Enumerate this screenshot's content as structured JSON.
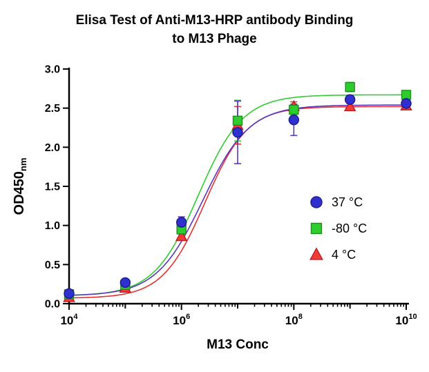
{
  "title": {
    "line1": "Elisa Test of Anti-M13-HRP antibody Binding",
    "line2": "to M13 Phage"
  },
  "chart_data": {
    "type": "scatter",
    "title": "Elisa Test of Anti-M13-HRP antibody Binding to M13 Phage",
    "xlabel": "M13 Conc",
    "ylabel": "OD450",
    "ylabel_subscript": "nm",
    "x_scale": "log10",
    "x_log_min": 4,
    "x_log_max": 10,
    "x_major_exponents": [
      4,
      6,
      8,
      10
    ],
    "x_exponents": [
      4,
      5,
      6,
      7,
      8,
      9,
      10
    ],
    "ylim": [
      0,
      3
    ],
    "ytick_step": 0.5,
    "grid": false,
    "legend_position": "inside-right",
    "curve_model": "four-parameter-logistic",
    "series": [
      {
        "name": "37 °C",
        "marker": "circle",
        "color": "#3030cf",
        "stroke": "#1a1a8c",
        "curve_color": "#5a35c0",
        "values": [
          0.13,
          0.27,
          1.04,
          2.19,
          2.35,
          2.61,
          2.56
        ],
        "errors": [
          0.03,
          0.04,
          0.07,
          0.4,
          0.2,
          0.05,
          0.05
        ],
        "fit": {
          "bottom": 0.1,
          "top": 2.54,
          "logEC50": 6.38,
          "hill": 1.05
        }
      },
      {
        "name": "-80 °C",
        "marker": "square",
        "color": "#2ecc2e",
        "stroke": "#1d8f1d",
        "curve_color": "#2ecc2e",
        "values": [
          0.12,
          0.24,
          0.95,
          2.34,
          2.48,
          2.77,
          2.67
        ],
        "errors": [
          0.02,
          0.03,
          0.06,
          0.26,
          0.07,
          0.06,
          0.05
        ],
        "fit": {
          "bottom": 0.1,
          "top": 2.67,
          "logEC50": 6.3,
          "hill": 1.1
        }
      },
      {
        "name": "4 °C",
        "marker": "triangle",
        "color": "#f23a3a",
        "stroke": "#b91d1d",
        "curve_color": "#e63030",
        "values": [
          0.08,
          0.2,
          0.86,
          2.28,
          2.52,
          2.52,
          2.53
        ],
        "errors": [
          0.02,
          0.03,
          0.05,
          0.24,
          0.06,
          0.04,
          0.04
        ],
        "fit": {
          "bottom": 0.07,
          "top": 2.52,
          "logEC50": 6.42,
          "hill": 1.15
        }
      }
    ]
  }
}
